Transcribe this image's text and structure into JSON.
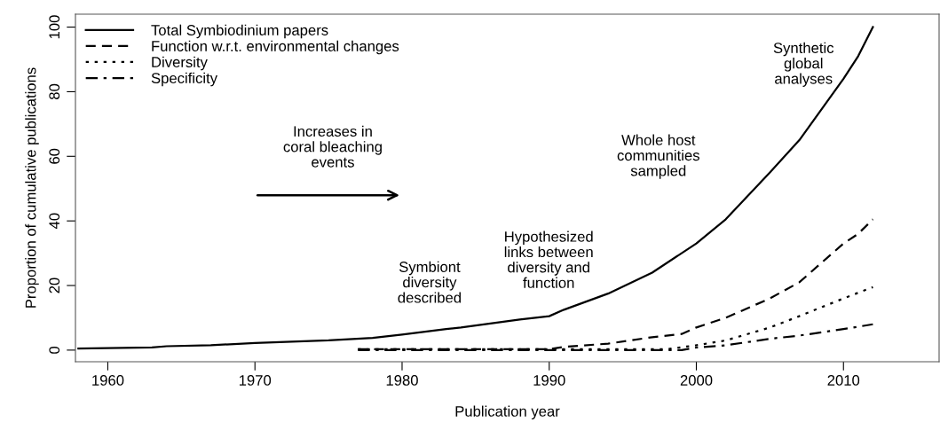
{
  "chart_data": {
    "type": "line",
    "xlabel": "Publication year",
    "ylabel": "Proportion of cumulative publications",
    "xlim": [
      1957.8,
      2016.5
    ],
    "ylim": [
      -3.6,
      104
    ],
    "xticks": [
      1960,
      1970,
      1980,
      1990,
      2000,
      2010
    ],
    "yticks": [
      0,
      20,
      40,
      60,
      80,
      100
    ],
    "grid": false,
    "legend": "top left",
    "marker": "none",
    "series": [
      {
        "name": "Total Symbiodinium papers",
        "color": "#000000",
        "line_style": "solid",
        "x": [
          1958,
          1963,
          1964,
          1967,
          1970,
          1975,
          1978,
          1980,
          1983,
          1984,
          1988,
          1990,
          1991,
          1994,
          1997,
          2000,
          2002,
          2005,
          2007,
          2010,
          2011,
          2012
        ],
        "values": [
          0.5,
          0.8,
          1.2,
          1.5,
          2.2,
          3,
          3.8,
          4.8,
          6.5,
          7,
          9.5,
          10.5,
          12.5,
          17.5,
          24,
          33,
          40.5,
          55,
          65,
          84,
          91,
          100
        ]
      },
      {
        "name": "Function w.r.t. environmental changes",
        "color": "#000000",
        "line_style": "dashed",
        "x": [
          1977,
          1990,
          1991,
          1994,
          1997,
          1999,
          2000,
          2002,
          2005,
          2007,
          2010,
          2011,
          2012
        ],
        "values": [
          0.3,
          0.3,
          1,
          2,
          4,
          5,
          7,
          10,
          16,
          21,
          33,
          36,
          40.5
        ]
      },
      {
        "name": "Diversity",
        "color": "#000000",
        "line_style": "dotted",
        "x": [
          1977,
          1998,
          2000,
          2002,
          2005,
          2007,
          2010,
          2012
        ],
        "values": [
          0.3,
          0.3,
          1.5,
          3,
          7,
          10.5,
          16,
          19.5
        ]
      },
      {
        "name": "Specificity",
        "color": "#000000",
        "line_style": "dashdot",
        "x": [
          1977,
          1999,
          2000,
          2002,
          2005,
          2007,
          2010,
          2012
        ],
        "values": [
          0,
          0,
          0.8,
          1.5,
          3.5,
          4.5,
          6.5,
          8
        ]
      }
    ],
    "annotations": [
      "Increases in\ncoral bleaching\nevents",
      "Symbiont\ndiversity\ndescribed",
      "Hypothesized\nlinks between\ndiversity and\nfunction",
      "Whole host\ncommunities\nsampled",
      "Synthetic\nglobal\nanalyses"
    ]
  }
}
